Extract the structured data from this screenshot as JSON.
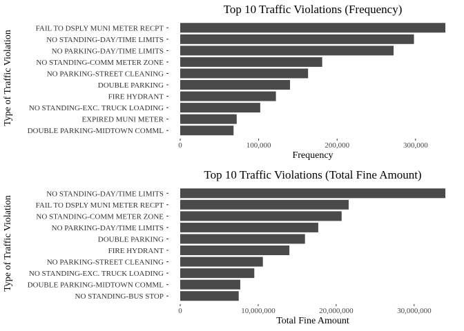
{
  "chart_data": [
    {
      "type": "bar",
      "orientation": "horizontal",
      "title": "Top 10 Traffic Violations (Frequency)",
      "xlabel": "Frequency",
      "ylabel": "Type of Traffic Violation",
      "categories": [
        "FAIL TO DSPLY MUNI METER RECPT",
        "NO STANDING-DAY/TIME LIMITS",
        "NO PARKING-DAY/TIME LIMITS",
        "NO STANDING-COMM METER ZONE",
        "NO PARKING-STREET CLEANING",
        "DOUBLE PARKING",
        "FIRE HYDRANT",
        "NO STANDING-EXC. TRUCK LOADING",
        "EXPIRED MUNI METER",
        "DOUBLE PARKING-MIDTOWN COMML"
      ],
      "values": [
        338000,
        298000,
        272000,
        181000,
        163000,
        140000,
        122000,
        102000,
        72000,
        68000
      ],
      "ticks": [
        0,
        100000,
        200000,
        300000
      ],
      "tick_labels": [
        "0",
        "100,000",
        "200,000",
        "300,000"
      ],
      "xlim": [
        0,
        338000
      ],
      "grid": false,
      "bar_color": "#4a4a4a"
    },
    {
      "type": "bar",
      "orientation": "horizontal",
      "title": "Top 10 Traffic Violations (Total Fine Amount)",
      "xlabel": "Total Fine Amount",
      "ylabel": "Type of Traffic Violation",
      "categories": [
        "NO STANDING-DAY/TIME LIMITS",
        "FAIL TO DSPLY MUNI METER RECPT",
        "NO STANDING-COMM METER ZONE",
        "NO PARKING-DAY/TIME LIMITS",
        "DOUBLE PARKING",
        "FIRE HYDRANT",
        "NO PARKING-STREET CLEANING",
        "NO STANDING-EXC. TRUCK LOADING",
        "DOUBLE PARKING-MIDTOWN COMML",
        "NO STANDING-BUS STOP"
      ],
      "values": [
        34000000,
        21600000,
        20700000,
        17700000,
        16000000,
        14000000,
        10600000,
        9500000,
        7700000,
        7500000
      ],
      "ticks": [
        0,
        10000000,
        20000000,
        30000000
      ],
      "tick_labels": [
        "0",
        "10,000,000",
        "20,000,000",
        "30,000,000"
      ],
      "xlim": [
        0,
        34000000
      ],
      "grid": false,
      "bar_color": "#4a4a4a"
    }
  ]
}
